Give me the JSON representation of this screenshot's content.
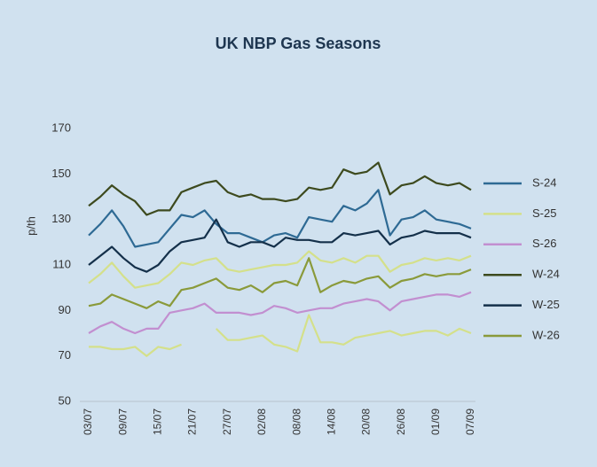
{
  "chart_data": {
    "type": "line",
    "title": "UK NBP Gas Seasons",
    "y_label": "p/th",
    "categories": [
      "03/07",
      null,
      null,
      "09/07",
      null,
      null,
      "15/07",
      null,
      null,
      "21/07",
      null,
      null,
      "27/07",
      null,
      null,
      "02/08",
      null,
      null,
      "08/08",
      null,
      null,
      "14/08",
      null,
      null,
      "20/08",
      null,
      null,
      "26/08",
      null,
      null,
      "01/09",
      null,
      null,
      "07/09"
    ],
    "ylim": [
      50,
      170
    ],
    "yticks": [
      50,
      70,
      90,
      110,
      130,
      150,
      170
    ],
    "grid": false,
    "legend": "right",
    "series": [
      {
        "name": "S-24",
        "color": "#2e6a94",
        "values": [
          123,
          128,
          134,
          127,
          118,
          119,
          120,
          126,
          132,
          131,
          134,
          128,
          124,
          124,
          122,
          120,
          123,
          124,
          122,
          131,
          130,
          129,
          136,
          134,
          137,
          143,
          123,
          130,
          131,
          134,
          130,
          129,
          128,
          126
        ]
      },
      {
        "name": "S-25",
        "color": "#d4e08a",
        "values": [
          102,
          106,
          111,
          105,
          100,
          101,
          102,
          106,
          111,
          110,
          112,
          113,
          108,
          107,
          108,
          109,
          110,
          110,
          111,
          116,
          112,
          111,
          113,
          111,
          114,
          114,
          107,
          110,
          111,
          113,
          112,
          113,
          112,
          114
        ]
      },
      {
        "name": "S-26",
        "color": "#c28fd0",
        "values": [
          80,
          83,
          85,
          82,
          80,
          82,
          82,
          89,
          90,
          91,
          93,
          89,
          89,
          89,
          88,
          89,
          92,
          91,
          89,
          90,
          91,
          91,
          93,
          94,
          95,
          94,
          90,
          94,
          95,
          96,
          97,
          97,
          96,
          98
        ]
      },
      {
        "name": "W-24",
        "color": "#3d4a1e",
        "values": [
          136,
          140,
          145,
          141,
          138,
          132,
          134,
          134,
          142,
          144,
          146,
          147,
          142,
          140,
          141,
          139,
          139,
          138,
          139,
          144,
          143,
          144,
          152,
          150,
          151,
          155,
          141,
          145,
          146,
          149,
          146,
          145,
          146,
          143
        ]
      },
      {
        "name": "W-25",
        "color": "#14304a",
        "values": [
          110,
          114,
          118,
          113,
          109,
          107,
          110,
          116,
          120,
          121,
          122,
          130,
          120,
          118,
          120,
          120,
          118,
          122,
          121,
          121,
          120,
          120,
          124,
          123,
          124,
          125,
          119,
          122,
          123,
          125,
          124,
          124,
          124,
          122
        ]
      },
      {
        "name": "W-26",
        "color": "#8a9a3a",
        "values": [
          92,
          93,
          97,
          95,
          93,
          91,
          94,
          92,
          99,
          100,
          102,
          104,
          100,
          99,
          101,
          98,
          102,
          103,
          101,
          113,
          98,
          101,
          103,
          102,
          104,
          105,
          100,
          103,
          104,
          106,
          105,
          106,
          106,
          108
        ]
      },
      {
        "color": "#d4e08a",
        "values": [
          74,
          74,
          73,
          73,
          74,
          70,
          74,
          73,
          75,
          null,
          null,
          82,
          77,
          77,
          78,
          79,
          75,
          74,
          72,
          88,
          76,
          76,
          75,
          78,
          79,
          80,
          81,
          79,
          80,
          81,
          81,
          79,
          82,
          80
        ]
      }
    ]
  }
}
